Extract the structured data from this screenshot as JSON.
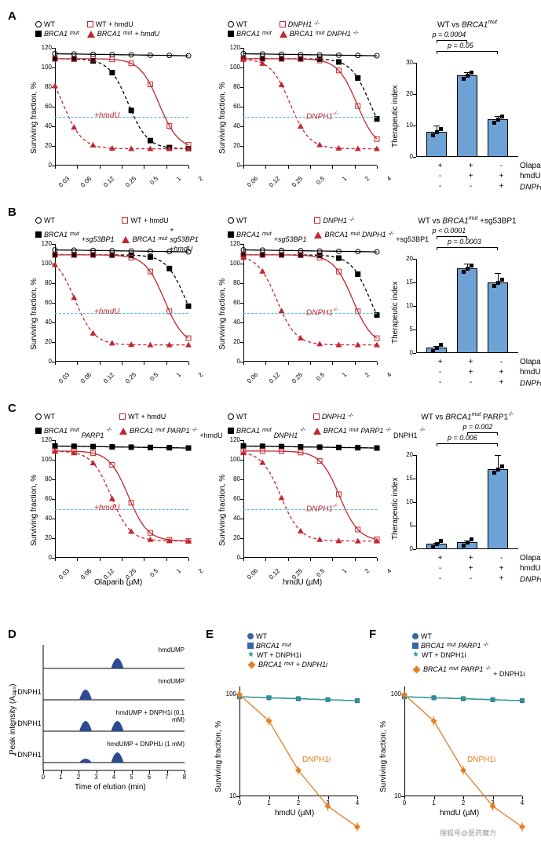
{
  "panels": {
    "A": "A",
    "B": "B",
    "C": "C",
    "D": "D",
    "E": "E",
    "F": "F"
  },
  "colors": {
    "black": "#000000",
    "red": "#c1272d",
    "blue": "#3a64a8",
    "barfill": "#6ea2d6",
    "teal": "#2a9d8f",
    "orange": "#e67e22",
    "cyan": "#59b8e6"
  },
  "shared": {
    "y_label": "Surviving fraction, %",
    "ti_label": "Therapeutic index",
    "y_ticks": [
      0,
      20,
      40,
      60,
      80,
      100,
      120
    ]
  },
  "row_x_left": {
    "label": "Olaparib (µM)",
    "ticks": [
      "0.03",
      "0.06",
      "0.12",
      "0.25",
      "0.5",
      "1",
      "2"
    ]
  },
  "row_x_mid": {
    "label": "hmdU (µM)",
    "ticks": [
      "0.06",
      "0.12",
      "0.25",
      "0.5",
      "1",
      "2",
      "4"
    ]
  },
  "A": {
    "left_legend": [
      {
        "marker": "open-circle",
        "text": "WT",
        "italic": false
      },
      {
        "marker": "fill-square",
        "text": "BRCA1",
        "sup": "mut",
        "italic": true
      },
      {
        "marker": "open-square",
        "text": "WT + hmdU",
        "italic": false
      },
      {
        "marker": "fill-triangle",
        "text": "BRCA1",
        "sup": "mut",
        "extra": " + hmdU",
        "italic": true
      }
    ],
    "mid_legend": [
      {
        "marker": "open-circle",
        "text": "WT"
      },
      {
        "marker": "fill-square",
        "text": "BRCA1",
        "sup": "mut",
        "italic": true
      },
      {
        "marker": "open-square",
        "text": "DNPH1",
        "sup": "-/-",
        "italic": true
      },
      {
        "marker": "fill-triangle",
        "text": "BRCA1",
        "sup": "mut",
        "extra": " DNPH1",
        "extra_sup": "-/-",
        "italic": true
      }
    ],
    "annot_left": "+hmdU",
    "annot_mid": "DNPH1-/-",
    "annot_mid_plain": "DNPH1",
    "bar": {
      "title": "WT vs BRCA1",
      "title_sup": "mut",
      "ylim": [
        0,
        30
      ],
      "yticks": [
        0,
        10,
        20,
        30
      ],
      "vals": [
        8,
        26,
        12
      ],
      "err": [
        2,
        1,
        1
      ],
      "p": [
        {
          "t": "p = 0.05",
          "i": 0,
          "j": 2
        },
        {
          "t": "p = 0.0004",
          "i": 0,
          "j": 1
        }
      ],
      "rows": [
        {
          "label": "Olaparib",
          "v": [
            "+",
            "+",
            "-"
          ]
        },
        {
          "label": "hmdU",
          "v": [
            "-",
            "+",
            "+"
          ]
        },
        {
          "label": "DNPH1",
          "sup": "-/-",
          "v": [
            "-",
            "-",
            "+"
          ],
          "italic": true
        }
      ]
    }
  },
  "B": {
    "left_legend": [
      {
        "marker": "open-circle",
        "text": "WT"
      },
      {
        "marker": "fill-square",
        "text": "BRCA1",
        "sup": "mut",
        "extra": "\n+sg53BP1",
        "italic": true
      },
      {
        "marker": "open-square",
        "text": "WT + hmdU"
      },
      {
        "marker": "fill-triangle",
        "text": "BRCA1",
        "sup": "mut",
        "extra": "+ sg53BP1\n+hmdU",
        "italic": true
      }
    ],
    "mid_legend": [
      {
        "marker": "open-circle",
        "text": "WT"
      },
      {
        "marker": "fill-square",
        "text": "BRCA1",
        "sup": "mut",
        "extra": "\n+sg53BP1",
        "italic": true
      },
      {
        "marker": "open-square",
        "text": "DNPH1",
        "sup": "-/-",
        "italic": true
      },
      {
        "marker": "fill-triangle",
        "text": "BRCA1",
        "sup": "mut",
        "extra": " DNPH1",
        "extra_sup": "-/-",
        "extra2": "\n+sg53BP1",
        "italic": true
      }
    ],
    "annot_left": "+hmdU",
    "annot_mid": "DNPH1-/-",
    "bar": {
      "title": "WT vs BRCA1",
      "title_sup": "mut",
      "title_extra": " +sg53BP1",
      "ylim": [
        0,
        20
      ],
      "yticks": [
        0,
        5,
        10,
        15,
        20
      ],
      "vals": [
        1.2,
        18,
        15
      ],
      "err": [
        0.3,
        1,
        2
      ],
      "p": [
        {
          "t": "p = 0.0003",
          "i": 0,
          "j": 2
        },
        {
          "t": "p < 0.0001",
          "i": 0,
          "j": 1
        }
      ],
      "rows": [
        {
          "label": "Olaparib",
          "v": [
            "+",
            "+",
            "-"
          ]
        },
        {
          "label": "hmdU",
          "v": [
            "-",
            "+",
            "+"
          ]
        },
        {
          "label": "DNPH1",
          "sup": "-/-",
          "v": [
            "-",
            "-",
            "+"
          ],
          "italic": true
        }
      ]
    }
  },
  "C": {
    "left_legend": [
      {
        "marker": "open-circle",
        "text": "WT"
      },
      {
        "marker": "fill-square",
        "text": "BRCA1",
        "sup": "mut",
        "extra": "\nPARP1",
        "extra_sup": "-/-",
        "italic": true
      },
      {
        "marker": "open-square",
        "text": "WT + hmdU"
      },
      {
        "marker": "fill-triangle",
        "text": "BRCA1",
        "sup": "mut",
        "extra": " PARP1",
        "extra_sup": "-/-",
        "extra2": "\n+hmdU",
        "italic": true
      }
    ],
    "mid_legend": [
      {
        "marker": "open-circle",
        "text": "WT"
      },
      {
        "marker": "fill-square",
        "text": "BRCA1",
        "sup": "mut",
        "extra": "\nDNPH1",
        "extra_sup": "-/-",
        "italic": true
      },
      {
        "marker": "open-square",
        "text": "DNPH1",
        "sup": "-/-",
        "italic": true
      },
      {
        "marker": "fill-triangle",
        "text": "BRCA1",
        "sup": "mut",
        "extra": " PARP1",
        "extra_sup": "-/-",
        "extra2": "\nDNPH1",
        "extra2_sup": "-/-",
        "italic": true
      }
    ],
    "annot_left": "+hmdU",
    "annot_mid": "DNPH1-/-",
    "bar": {
      "title": "WT vs BRCA1",
      "title_sup": "mut",
      "title_extra": " PARP1",
      "title_extra_sup": "-/-",
      "ylim": [
        0,
        20
      ],
      "yticks": [
        0,
        5,
        10,
        15,
        20
      ],
      "vals": [
        1.2,
        1.5,
        17
      ],
      "err": [
        0.2,
        0.3,
        3
      ],
      "p": [
        {
          "t": "p = 0.006",
          "i": 0,
          "j": 2
        },
        {
          "t": "p = 0.002",
          "i": 1,
          "j": 2
        }
      ],
      "rows": [
        {
          "label": "Olaparib",
          "v": [
            "+",
            "+",
            "-"
          ]
        },
        {
          "label": "hmdU",
          "v": [
            "-",
            "+",
            "+"
          ]
        },
        {
          "label": "DNPH1",
          "sup": "-/-",
          "v": [
            "-",
            "-",
            "+"
          ],
          "italic": true
        }
      ]
    }
  },
  "D": {
    "y_label": "Peak intensity (A₂₆₀)",
    "x_label": "Time of elution (min)",
    "x_ticks": [
      0,
      1,
      2,
      3,
      4,
      5,
      6,
      7,
      8
    ],
    "traces": [
      {
        "left": "",
        "right": "hmdUMP",
        "peak_x": 4.2
      },
      {
        "left": "+DNPH1",
        "right": "hmdUMP",
        "peak_x": 2.4
      },
      {
        "left": "+DNPH1",
        "right": "hmdUMP + DNPH1i (0.1 mM)",
        "peak_x": 2.4,
        "peak2_x": 4.2
      },
      {
        "left": "+DNPH1",
        "right": "hmdUMP + DNPH1i (1 mM)",
        "peak_x": 4.2,
        "peak2_x": 2.4,
        "small2": true
      }
    ]
  },
  "E": {
    "legend": [
      {
        "marker": "fill-circle-blue",
        "text": "WT"
      },
      {
        "marker": "fill-square-blue",
        "text": "BRCA1",
        "sup": "mut",
        "italic": true
      },
      {
        "marker": "star-teal",
        "text": "WT + DNPH1i"
      },
      {
        "marker": "diamond-orange",
        "text": "BRCA1",
        "sup": "mut",
        "extra": " + DNPH1i",
        "italic": true
      }
    ],
    "y_label": "Surviving fraction, %",
    "x_label": "hmdU (µM)",
    "x_ticks": [
      "0",
      "1",
      "2",
      "3",
      "4"
    ],
    "y_ticks": [
      "10",
      "100"
    ],
    "annot": "DNPH1i"
  },
  "F": {
    "legend": [
      {
        "marker": "fill-circle-blue",
        "text": "WT"
      },
      {
        "marker": "fill-square-blue",
        "text": "BRCA1",
        "sup": "mut",
        "extra": " PARP1",
        "extra_sup": "-/-",
        "italic": true
      },
      {
        "marker": "star-teal",
        "text": "WT + DNPH1i"
      },
      {
        "marker": "diamond-orange",
        "text": "BRCA1",
        "sup": "mut",
        "extra": " PARP1",
        "extra_sup": "-/-",
        "extra2": "\n+ DNPH1i",
        "italic": true
      }
    ],
    "y_label": "Surviving fraction, %",
    "x_label": "hmdU (µM)",
    "x_ticks": [
      "0",
      "1",
      "2",
      "3",
      "4"
    ],
    "y_ticks": [
      "10",
      "100"
    ],
    "annot": "DNPH1i"
  },
  "watermark": "搜狐号@医药魔方"
}
